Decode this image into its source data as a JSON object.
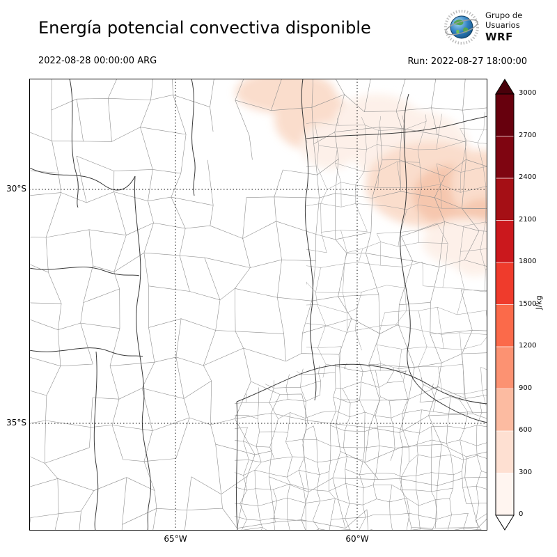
{
  "header": {
    "title": "Energía potencial convectiva disponible",
    "logo": {
      "line1": "Grupo de",
      "line2": "Usuarios",
      "line3": "WRF"
    }
  },
  "subheader": {
    "valid_time": "2022-08-28 00:00:00 ARG",
    "run_label": "Run: 2022-08-27 18:00:00"
  },
  "map": {
    "lat_ticks": [
      "30°S",
      "35°S"
    ],
    "lon_ticks": [
      "65°W",
      "60°W"
    ]
  },
  "colorbar": {
    "unit": "J/kg",
    "tick_labels": [
      "0",
      "300",
      "600",
      "900",
      "1200",
      "1500",
      "1800",
      "2100",
      "2400",
      "2700",
      "3000"
    ],
    "segment_colors": [
      "#fff5f0",
      "#fee0d2",
      "#fcbba1",
      "#fc9272",
      "#fb6a4a",
      "#ef3b2c",
      "#cb181d",
      "#a50f15",
      "#7f0511",
      "#67000d"
    ],
    "under_color": "#ffffff",
    "over_color": "#49000a",
    "shade_light": "#fdf0e8",
    "shade_mid": "#fadcca",
    "shade_strong": "#f5c1a4"
  }
}
